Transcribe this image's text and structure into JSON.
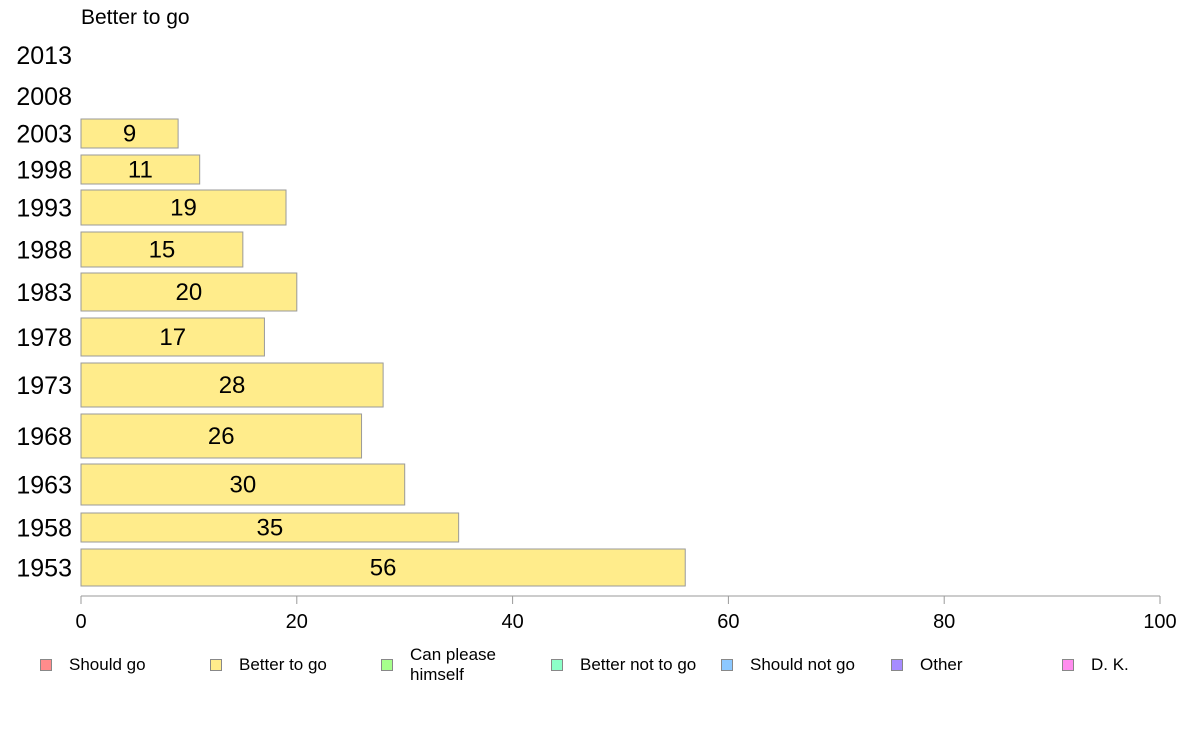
{
  "chart_data": {
    "type": "bar",
    "orientation": "horizontal",
    "title": "Better to go",
    "categories": [
      "2013",
      "2008",
      "2003",
      "1998",
      "1993",
      "1988",
      "1983",
      "1978",
      "1973",
      "1968",
      "1963",
      "1958",
      "1953"
    ],
    "series": [
      {
        "name": "Better to go",
        "values": [
          null,
          null,
          9,
          11,
          19,
          15,
          20,
          17,
          28,
          26,
          30,
          35,
          56
        ]
      }
    ],
    "data_labels": [
      "",
      "",
      "9",
      "11",
      "19",
      "15",
      "20",
      "17",
      "28",
      "26",
      "30",
      "35",
      "56"
    ],
    "xlim": [
      0,
      100
    ],
    "x_ticks": [
      "0",
      "20",
      "40",
      "60",
      "80",
      "100"
    ],
    "grid": false,
    "bar_color": "#ffec8b",
    "legend_position": "bottom"
  },
  "legend": {
    "items": [
      {
        "label": "Should go",
        "color": "#ff8c8c"
      },
      {
        "label": "Better to go",
        "color": "#ffec8b"
      },
      {
        "label": "Can please himself",
        "color": "#a6ff8c"
      },
      {
        "label": "Better not to go",
        "color": "#8cffc8"
      },
      {
        "label": "Should not go",
        "color": "#8cc8ff"
      },
      {
        "label": "Other",
        "color": "#a68cff"
      },
      {
        "label": "D. K.",
        "color": "#ff8cee"
      }
    ]
  }
}
